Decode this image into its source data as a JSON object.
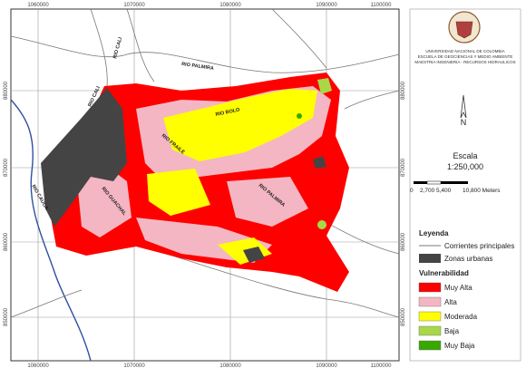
{
  "map": {
    "coords_top": [
      "1060000",
      "1070000",
      "1080000",
      "1090000",
      "1100000"
    ],
    "coords_bottom": [
      "1060000",
      "1070000",
      "1080000",
      "1090000",
      "1100000"
    ],
    "coords_left": [
      "880000",
      "870000",
      "860000",
      "850000"
    ],
    "coords_right": [
      "880000",
      "870000",
      "860000",
      "850000"
    ],
    "river_labels": [
      "RIO CALI",
      "RIO PALMIRA",
      "RIO BOLO",
      "RIO FRAILE",
      "RIO PALMIRA",
      "RIO CALI",
      "RIO CAUCA",
      "RIO GUACHAL"
    ]
  },
  "panel": {
    "institution": [
      "UNIVERSIDAD NACIONAL DE COLOMBIA",
      "ESCUELA DE GEOCIENCIAS Y MEDIO AMBIENTE",
      "MAESTRIA INGENIERIA - RECURSOS HIDRAULICOS"
    ],
    "north": "N",
    "scale_title": "Escala",
    "scale_ratio": "1:250,000",
    "scale_ticks": [
      "0",
      "2,700",
      "5,400",
      "10,800 Meters"
    ],
    "legend_title": "Leyenda",
    "legend_lines": [
      "Corrientes principales",
      "Zonas urbanas"
    ],
    "vuln_title": "Vulnerabilidad",
    "vuln_items": [
      {
        "label": "Muy Alta",
        "color": "#ff0000"
      },
      {
        "label": "Alta",
        "color": "#f4b6c2"
      },
      {
        "label": "Moderada",
        "color": "#ffff00"
      },
      {
        "label": "Baja",
        "color": "#a8d848"
      },
      {
        "label": "Muy Baja",
        "color": "#38a800"
      }
    ]
  }
}
